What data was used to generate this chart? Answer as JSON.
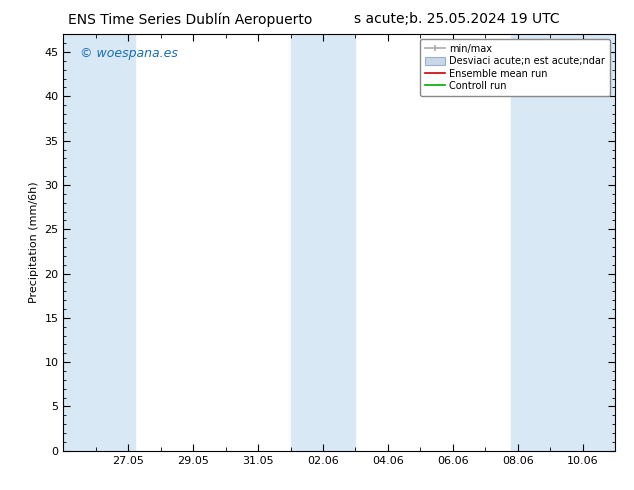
{
  "title_left": "ENS Time Series Dublín Aeropuerto",
  "title_right": "s acute;b. 25.05.2024 19 UTC",
  "ylabel": "Precipitation (mm/6h)",
  "ymin": 0,
  "ymax": 47,
  "yticks": [
    0,
    5,
    10,
    15,
    20,
    25,
    30,
    35,
    40,
    45
  ],
  "xlim_start_day": 0,
  "xlim_end_day": 17,
  "xtick_days": [
    2,
    4,
    6,
    8,
    10,
    12,
    14,
    16
  ],
  "xtick_labels": [
    "27.05",
    "29.05",
    "31.05",
    "02.06",
    "04.06",
    "06.06",
    "08.06",
    "10.06"
  ],
  "watermark": "© woespana.es",
  "bg_color": "#ffffff",
  "plot_bg_color": "#ffffff",
  "band_color": "#d8e8f5",
  "legend_label_minmax": "min/max",
  "legend_label_std": "Desviaci acute;n est acute;ndar",
  "legend_label_ens": "Ensemble mean run",
  "legend_label_ctrl": "Controll run",
  "band_ranges": [
    [
      0,
      2.2
    ],
    [
      7.0,
      9.0
    ],
    [
      13.8,
      17.0
    ]
  ],
  "title_fontsize": 10,
  "axis_label_fontsize": 8,
  "tick_fontsize": 8,
  "legend_fontsize": 7,
  "watermark_fontsize": 9,
  "minmax_color": "#aaaaaa",
  "std_color": "#c8d8e8",
  "ens_color": "#cc0000",
  "ctrl_color": "#00aa00"
}
